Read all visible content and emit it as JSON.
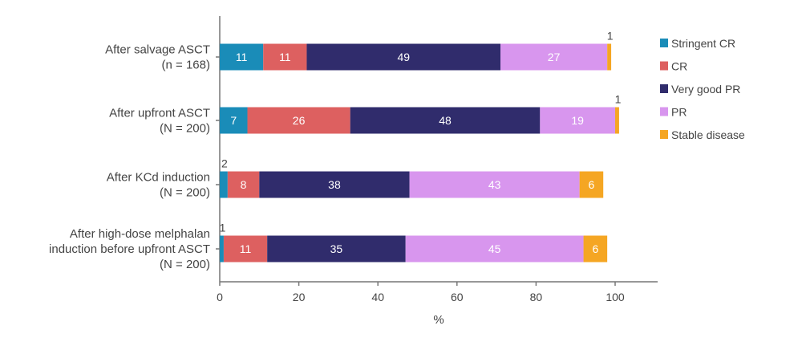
{
  "chart_data": {
    "type": "bar",
    "orientation": "horizontal",
    "stacked": true,
    "title": "",
    "xlabel": "%",
    "ylabel": "",
    "xlim": [
      0,
      110
    ],
    "xticks": [
      0,
      20,
      40,
      60,
      80,
      100
    ],
    "legend_position": "right",
    "categories": [
      [
        "After salvage ASCT",
        "(n = 168)"
      ],
      [
        "After upfront ASCT",
        "(N = 200)"
      ],
      [
        "After KCd induction",
        "(N = 200)"
      ],
      [
        "After high-dose melphalan",
        "induction before upfront ASCT",
        "(N = 200)"
      ]
    ],
    "series": [
      {
        "name": "Stringent CR",
        "color": "#1a8cb8",
        "values": [
          11,
          7,
          2,
          1
        ]
      },
      {
        "name": "CR",
        "color": "#dd6060",
        "values": [
          11,
          26,
          8,
          11
        ]
      },
      {
        "name": "Very good PR",
        "color": "#302c6c",
        "values": [
          49,
          48,
          38,
          35
        ]
      },
      {
        "name": "PR",
        "color": "#d896ee",
        "values": [
          27,
          19,
          43,
          45
        ]
      },
      {
        "name": "Stable disease",
        "color": "#f5a623",
        "values": [
          1,
          1,
          6,
          6
        ]
      }
    ]
  }
}
